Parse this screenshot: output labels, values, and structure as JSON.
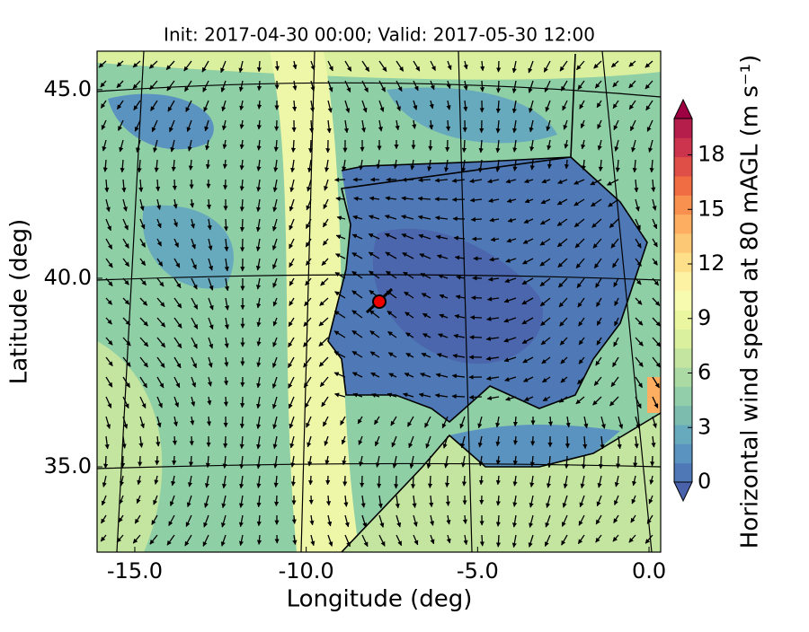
{
  "chart_data": {
    "type": "map",
    "title": "Init: 2017-04-30 00:00; Valid: 2017-05-30 12:00",
    "x_label": "Longitude (deg)",
    "y_label": "Latitude (deg)",
    "xlim": [
      -16.1,
      0.34
    ],
    "ylim": [
      32.74,
      46.02
    ],
    "xticks": [
      {
        "value": -15,
        "label": "-15.0"
      },
      {
        "value": -10,
        "label": "-10.0"
      },
      {
        "value": -5,
        "label": "-5.0"
      },
      {
        "value": 0,
        "label": "0.0"
      }
    ],
    "yticks": [
      {
        "value": 35,
        "label": "35.0"
      },
      {
        "value": 40,
        "label": "40.0"
      },
      {
        "value": 45,
        "label": "45.0"
      }
    ],
    "colorbar": {
      "label": "Horizontal wind speed at 80 mAGL (m s⁻¹)",
      "lim": [
        0,
        20
      ],
      "ticks": [
        0,
        3,
        6,
        9,
        12,
        15,
        18
      ],
      "colors": [
        "#4a62ab",
        "#4f79b6",
        "#5a93bf",
        "#67a9bd",
        "#7bbcae",
        "#93ceaa",
        "#acdaa4",
        "#c4e59f",
        "#daf09e",
        "#ebf6a1",
        "#f7fbb0",
        "#fdf1a4",
        "#fee08b",
        "#fdc875",
        "#fdae61",
        "#f8914f",
        "#f06c43",
        "#e04f47",
        "#cc334d",
        "#b51d4b",
        "#9e0142"
      ]
    }
  }
}
